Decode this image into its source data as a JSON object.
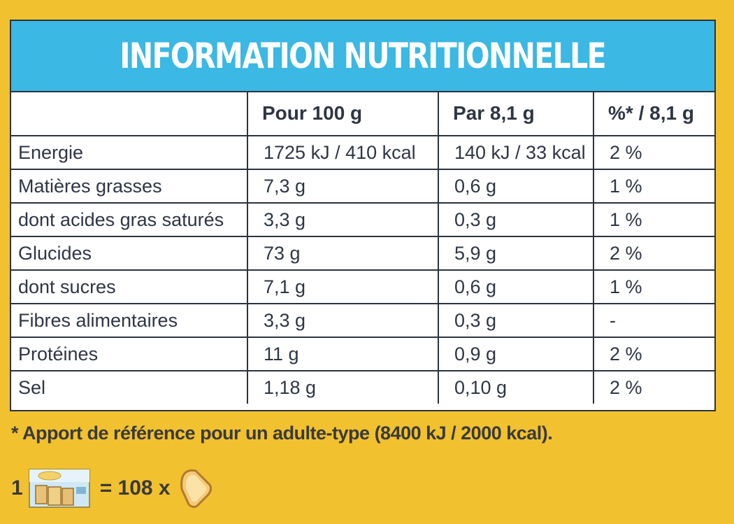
{
  "title": "INFORMATION NUTRITIONNELLE",
  "table": {
    "headers": [
      "",
      "Pour 100 g",
      "Par 8,1 g",
      "%* / 8,1 g"
    ],
    "rows": [
      {
        "nutrient": "Energie",
        "per100": "1725 kJ / 410 kcal",
        "perServing": "140 kJ / 33 kcal",
        "percent": "2 %"
      },
      {
        "nutrient": "Matières grasses",
        "per100": "7,3 g",
        "perServing": "0,6 g",
        "percent": "1 %"
      },
      {
        "nutrient": "dont acides gras saturés",
        "per100": "3,3 g",
        "perServing": "0,3 g",
        "percent": "1 %"
      },
      {
        "nutrient": "Glucides",
        "per100": "73 g",
        "perServing": "5,9 g",
        "percent": "2 %"
      },
      {
        "nutrient": "dont sucres",
        "per100": "7,1 g",
        "perServing": "0,6 g",
        "percent": "1 %"
      },
      {
        "nutrient": "Fibres alimentaires",
        "per100": "3,3 g",
        "perServing": "0,3 g",
        "percent": "-"
      },
      {
        "nutrient": "Protéines",
        "per100": "11 g",
        "perServing": "0,9 g",
        "percent": "2 %"
      },
      {
        "nutrient": "Sel",
        "per100": "1,18 g",
        "perServing": "0,10 g",
        "percent": "2 %"
      }
    ]
  },
  "footnote": "* Apport de référence pour un adulte-type (8400 kJ / 2000 kcal).",
  "packEquivalence": {
    "count": "1",
    "equals": "= 108 x",
    "packIcon": "product-pack-icon",
    "toastIcon": "toast-slice-icon"
  },
  "colors": {
    "background": "#f1c12f",
    "titleBar": "#3bb8e3",
    "border": "#2b3340",
    "text": "#2e3545"
  }
}
